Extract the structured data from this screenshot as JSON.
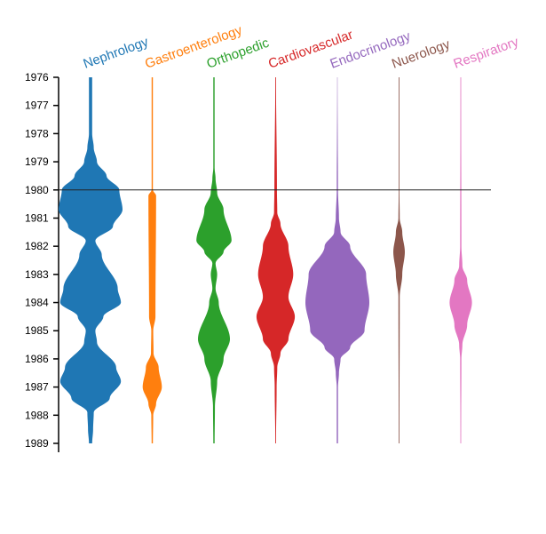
{
  "chart_data": {
    "type": "violin",
    "orientation": "vertical",
    "y_axis": {
      "reversed": true,
      "ylim": [
        1976,
        1989
      ],
      "ticks": [
        "1976",
        "1977",
        "1978",
        "1979",
        "1980",
        "1981",
        "1982",
        "1983",
        "1984",
        "1985",
        "1986",
        "1987",
        "1988",
        "1989"
      ]
    },
    "reference_line": {
      "value": 1980
    },
    "categories": [
      {
        "name": "Nephrology",
        "color": "#1f77b4",
        "density": [
          [
            1976,
            0.05
          ],
          [
            1978,
            0.05
          ],
          [
            1978.5,
            0.1
          ],
          [
            1979,
            0.2
          ],
          [
            1979.5,
            0.5
          ],
          [
            1980,
            0.9
          ],
          [
            1980.7,
            1.0
          ],
          [
            1981.3,
            0.7
          ],
          [
            1981.8,
            0.15
          ],
          [
            1982.3,
            0.35
          ],
          [
            1983.5,
            0.85
          ],
          [
            1984,
            0.95
          ],
          [
            1984.5,
            0.4
          ],
          [
            1985,
            0.15
          ],
          [
            1985.4,
            0.2
          ],
          [
            1986.3,
            0.8
          ],
          [
            1986.8,
            0.95
          ],
          [
            1987.4,
            0.6
          ],
          [
            1987.9,
            0.1
          ],
          [
            1988.5,
            0.08
          ],
          [
            1989,
            0.05
          ]
        ]
      },
      {
        "name": "Gastroenterology",
        "color": "#ff7f0e",
        "density": [
          [
            1976,
            0.02
          ],
          [
            1980,
            0.02
          ],
          [
            1980.2,
            0.12
          ],
          [
            1984.5,
            0.1
          ],
          [
            1985,
            0.03
          ],
          [
            1985.8,
            0.04
          ],
          [
            1986.3,
            0.2
          ],
          [
            1987,
            0.3
          ],
          [
            1987.6,
            0.12
          ],
          [
            1988,
            0.03
          ],
          [
            1989,
            0.02
          ]
        ]
      },
      {
        "name": "Orthopedic",
        "color": "#2ca02c",
        "density": [
          [
            1976,
            0.02
          ],
          [
            1979.2,
            0.02
          ],
          [
            1979.6,
            0.05
          ],
          [
            1980.1,
            0.1
          ],
          [
            1980.7,
            0.3
          ],
          [
            1981.8,
            0.55
          ],
          [
            1982.2,
            0.3
          ],
          [
            1982.6,
            0.05
          ],
          [
            1983,
            0.1
          ],
          [
            1983.5,
            0.05
          ],
          [
            1984,
            0.15
          ],
          [
            1985.3,
            0.5
          ],
          [
            1986,
            0.3
          ],
          [
            1986.8,
            0.1
          ],
          [
            1987.7,
            0.03
          ],
          [
            1989,
            0.02
          ]
        ]
      },
      {
        "name": "Cardiovascular",
        "color": "#d62728",
        "density": [
          [
            1976,
            0.01
          ],
          [
            1980,
            0.04
          ],
          [
            1980.8,
            0.05
          ],
          [
            1981.2,
            0.15
          ],
          [
            1982,
            0.4
          ],
          [
            1983,
            0.55
          ],
          [
            1983.8,
            0.4
          ],
          [
            1984.5,
            0.6
          ],
          [
            1985.3,
            0.4
          ],
          [
            1985.8,
            0.15
          ],
          [
            1986.3,
            0.05
          ],
          [
            1987,
            0.03
          ],
          [
            1989,
            0.01
          ]
        ]
      },
      {
        "name": "Endocrinology",
        "color": "#9467bd",
        "density": [
          [
            1976,
            0.0
          ],
          [
            1980,
            0.02
          ],
          [
            1981,
            0.05
          ],
          [
            1981.5,
            0.1
          ],
          [
            1982,
            0.4
          ],
          [
            1983,
            0.9
          ],
          [
            1984,
            1.0
          ],
          [
            1985,
            0.85
          ],
          [
            1985.6,
            0.4
          ],
          [
            1986,
            0.1
          ],
          [
            1986.5,
            0.05
          ],
          [
            1987,
            0.02
          ]
        ]
      },
      {
        "name": "Nuerology",
        "color": "#8c564b",
        "density": [
          [
            1976,
            0.01
          ],
          [
            1980,
            0.01
          ],
          [
            1981,
            0.02
          ],
          [
            1981.5,
            0.1
          ],
          [
            1982.2,
            0.18
          ],
          [
            1983,
            0.1
          ],
          [
            1983.8,
            0.02
          ],
          [
            1989,
            0.01
          ]
        ]
      },
      {
        "name": "Respiratory",
        "color": "#e377c2",
        "density": [
          [
            1976,
            0.01
          ],
          [
            1982,
            0.02
          ],
          [
            1982.7,
            0.05
          ],
          [
            1983.2,
            0.2
          ],
          [
            1984,
            0.35
          ],
          [
            1984.8,
            0.2
          ],
          [
            1985.5,
            0.05
          ],
          [
            1986,
            0.02
          ],
          [
            1989,
            0.01
          ]
        ]
      }
    ]
  }
}
